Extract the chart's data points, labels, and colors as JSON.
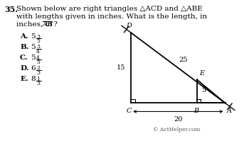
{
  "title_number": "35.",
  "title_text1": "Shown below are right triangles △ACD and △ABE",
  "title_text2": "with lengths given in inches. What is the length, in",
  "title_text3": "inches, of ",
  "title_ab": "AB",
  "title_q": " ?",
  "answers": [
    {
      "letter": "A.",
      "whole": "5",
      "num": "3",
      "den": "5"
    },
    {
      "letter": "B.",
      "whole": "5",
      "num": "3",
      "den": "4"
    },
    {
      "letter": "C.",
      "whole": "5",
      "num": "4",
      "den": "5"
    },
    {
      "letter": "D.",
      "whole": "6",
      "num": "2",
      "den": "3"
    },
    {
      "letter": "E.",
      "whole": "8",
      "num": "1",
      "den": "3"
    }
  ],
  "copyright": "© ActHelper.com",
  "bg_color": "#ffffff",
  "text_color": "#000000",
  "C": [
    0,
    0
  ],
  "D": [
    0,
    15
  ],
  "A": [
    20,
    0
  ],
  "B": [
    14,
    0
  ],
  "E": [
    14,
    5
  ]
}
